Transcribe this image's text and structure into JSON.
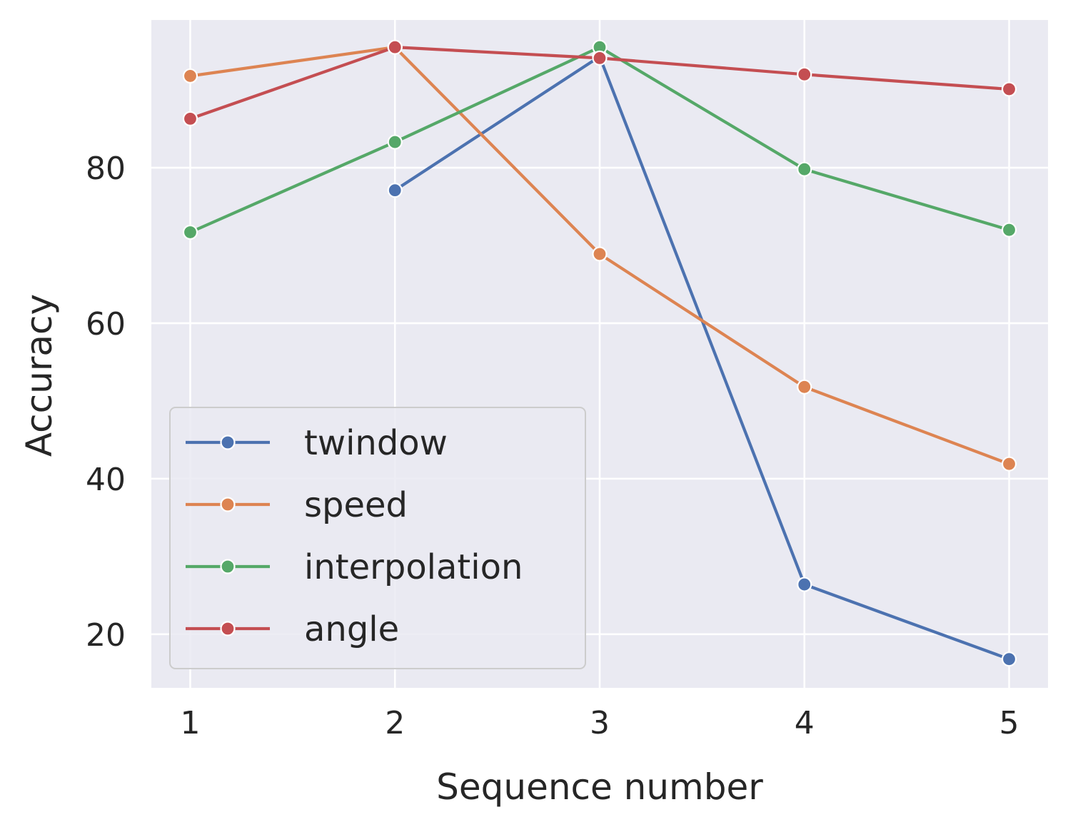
{
  "chart_data": {
    "type": "line",
    "xlabel": "Sequence number",
    "ylabel": "Accuracy",
    "x": [
      1,
      2,
      3,
      4,
      5
    ],
    "xticks": [
      "1",
      "2",
      "3",
      "4",
      "5"
    ],
    "yticks": [
      "20",
      "40",
      "60",
      "80"
    ],
    "xlim": [
      0.81,
      5.19
    ],
    "ylim": [
      13.1,
      99.0
    ],
    "grid": true,
    "background": "#eaeaf2",
    "legend_position": "lower-left",
    "series": [
      {
        "name": "twindow",
        "color": "#4c72b0",
        "values": [
          null,
          77.1,
          94.3,
          26.4,
          16.8
        ]
      },
      {
        "name": "speed",
        "color": "#dd8452",
        "values": [
          91.8,
          95.5,
          68.9,
          51.8,
          41.9
        ]
      },
      {
        "name": "interpolation",
        "color": "#55a868",
        "values": [
          71.7,
          83.3,
          95.5,
          79.8,
          72.0
        ]
      },
      {
        "name": "angle",
        "color": "#c44e52",
        "values": [
          86.3,
          95.5,
          94.1,
          92.0,
          90.1
        ]
      }
    ]
  }
}
